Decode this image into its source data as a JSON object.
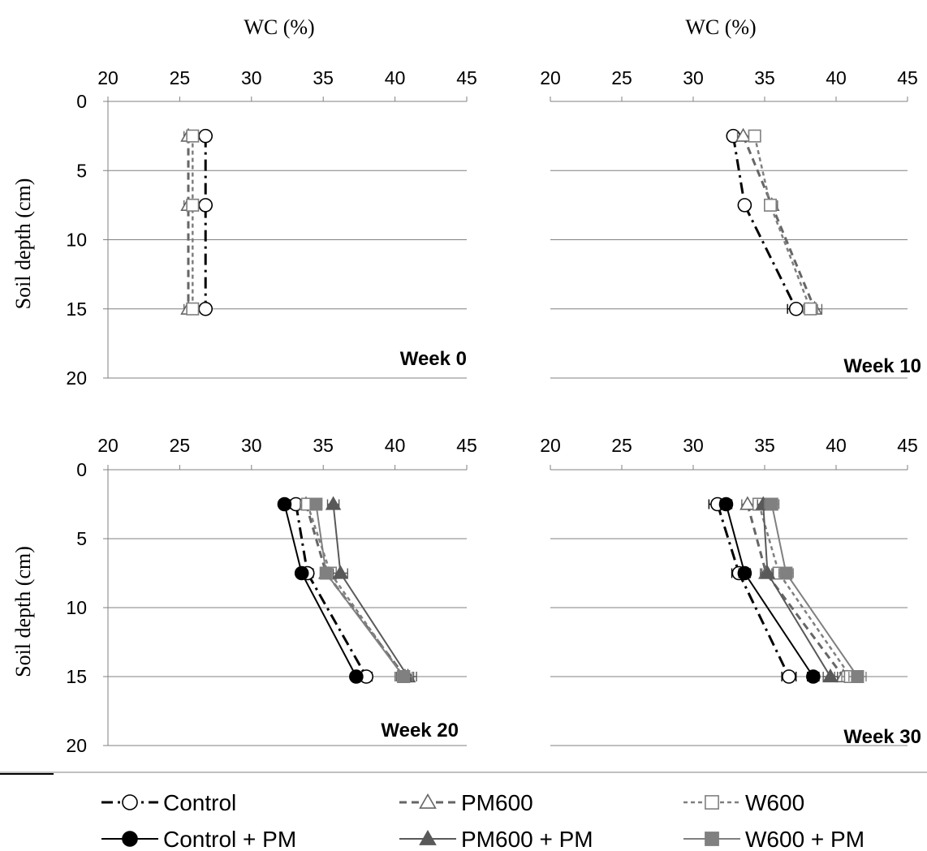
{
  "chart_data": {
    "type": "line",
    "colors": {
      "control": "#000000",
      "pm600": "#666666",
      "w600": "#7f7f7f",
      "control_pm": "#000000",
      "pm600_pm": "#595959",
      "w600_pm": "#808080",
      "grid": "#808080"
    },
    "legend": {
      "placement": "bottom",
      "entries": [
        {
          "key": "control",
          "label": "Control"
        },
        {
          "key": "pm600",
          "label": "PM600"
        },
        {
          "key": "w600",
          "label": "W600"
        },
        {
          "key": "control_pm",
          "label": "Control + PM"
        },
        {
          "key": "pm600_pm",
          "label": "PM600 + PM"
        },
        {
          "key": "w600_pm",
          "label": "W600 + PM"
        }
      ]
    },
    "panels": [
      {
        "title": "Week 0",
        "xlabel": "WC (%)",
        "ylabel": "Soil depth (cm)",
        "xlim": [
          20,
          45
        ],
        "ylim": [
          0,
          20
        ],
        "xticks": [
          "20",
          "25",
          "30",
          "35",
          "40",
          "45"
        ],
        "yticks": [
          "0",
          "5",
          "10",
          "15",
          "20"
        ],
        "depths": [
          2.5,
          7.5,
          15
        ],
        "series": [
          {
            "key": "control",
            "values": [
              26.8,
              26.8,
              26.8
            ],
            "err": [
              0.3,
              0.3,
              0.3
            ]
          },
          {
            "key": "pm600",
            "values": [
              25.6,
              25.6,
              25.6
            ],
            "err": [
              0.3,
              0.3,
              0.3
            ]
          },
          {
            "key": "w600",
            "values": [
              25.9,
              25.9,
              25.9
            ],
            "err": [
              0.3,
              0.3,
              0.3
            ]
          }
        ]
      },
      {
        "title": "Week 10",
        "xlabel": "WC (%)",
        "ylabel": "",
        "xlim": [
          20,
          45
        ],
        "ylim": [
          0,
          20
        ],
        "xticks": [
          "20",
          "25",
          "30",
          "35",
          "40",
          "45"
        ],
        "yticks": [],
        "depths": [
          2.5,
          7.5,
          15
        ],
        "series": [
          {
            "key": "control",
            "values": [
              32.8,
              33.6,
              37.2
            ],
            "err": [
              0.3,
              0.3,
              0.6
            ]
          },
          {
            "key": "pm600",
            "values": [
              33.5,
              35.5,
              38.5
            ],
            "err": [
              0.4,
              0.4,
              0.5
            ]
          },
          {
            "key": "w600",
            "values": [
              34.3,
              35.4,
              38.2
            ],
            "err": [
              0.4,
              0.4,
              0.5
            ]
          }
        ]
      },
      {
        "title": "Week 20",
        "xlabel": "",
        "ylabel": "Soil depth (cm)",
        "xlim": [
          20,
          45
        ],
        "ylim": [
          0,
          20
        ],
        "xticks": [
          "20",
          "25",
          "30",
          "35",
          "40",
          "45"
        ],
        "yticks": [
          "0",
          "5",
          "10",
          "15",
          "20"
        ],
        "depths": [
          2.5,
          7.5,
          15
        ],
        "series": [
          {
            "key": "control",
            "values": [
              33.1,
              33.9,
              38.0
            ],
            "err": [
              0.4,
              0.4,
              0.4
            ]
          },
          {
            "key": "pm600",
            "values": [
              33.8,
              35.2,
              40.7
            ],
            "err": [
              0.4,
              0.4,
              0.6
            ]
          },
          {
            "key": "w600",
            "values": [
              33.9,
              35.5,
              40.6
            ],
            "err": [
              0.4,
              0.4,
              0.6
            ]
          },
          {
            "key": "control_pm",
            "values": [
              32.3,
              33.5,
              37.3
            ],
            "err": [
              0.3,
              0.3,
              0.3
            ]
          },
          {
            "key": "pm600_pm",
            "values": [
              35.7,
              36.2,
              40.9
            ],
            "err": [
              0.4,
              0.5,
              0.6
            ]
          },
          {
            "key": "w600_pm",
            "values": [
              34.5,
              35.2,
              40.6
            ],
            "err": [
              0.4,
              0.4,
              0.6
            ]
          }
        ]
      },
      {
        "title": "Week 30",
        "xlabel": "",
        "ylabel": "",
        "xlim": [
          20,
          45
        ],
        "ylim": [
          0,
          20
        ],
        "xticks": [
          "20",
          "25",
          "30",
          "35",
          "40",
          "45"
        ],
        "yticks": [],
        "depths": [
          2.5,
          7.5,
          15
        ],
        "series": [
          {
            "key": "control",
            "values": [
              31.7,
              33.2,
              36.7
            ],
            "err": [
              0.6,
              0.5,
              0.5
            ]
          },
          {
            "key": "pm600",
            "values": [
              33.8,
              35.1,
              40.5
            ],
            "err": [
              0.4,
              0.4,
              0.6
            ]
          },
          {
            "key": "w600",
            "values": [
              34.6,
              36.0,
              41.0
            ],
            "err": [
              0.4,
              0.5,
              0.6
            ]
          },
          {
            "key": "control_pm",
            "values": [
              32.3,
              33.6,
              38.4
            ],
            "err": [
              0.4,
              0.4,
              0.4
            ]
          },
          {
            "key": "pm600_pm",
            "values": [
              34.9,
              35.2,
              39.6
            ],
            "err": [
              0.4,
              0.4,
              0.5
            ]
          },
          {
            "key": "w600_pm",
            "values": [
              35.5,
              36.5,
              41.5
            ],
            "err": [
              0.5,
              0.5,
              0.6
            ]
          }
        ]
      }
    ]
  }
}
